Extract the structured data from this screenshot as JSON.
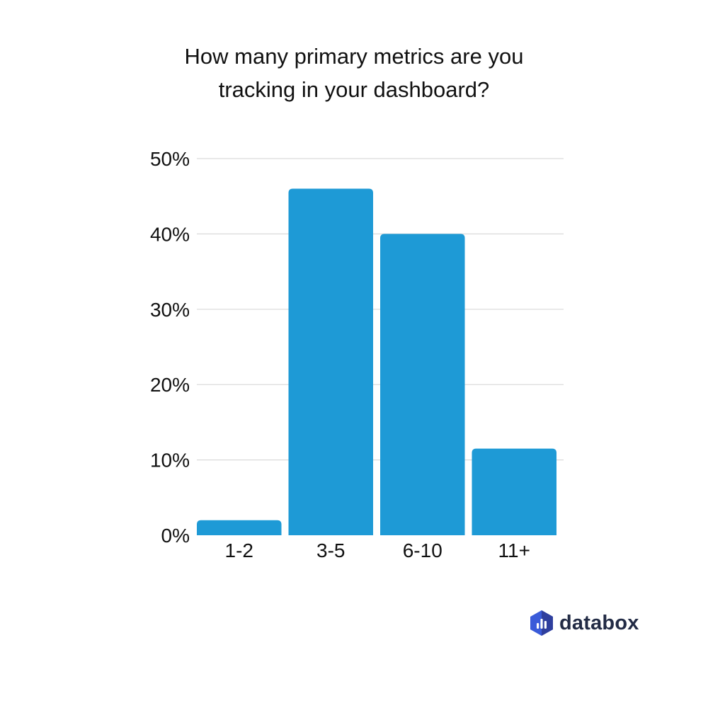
{
  "title": {
    "line1": "How many primary metrics are you",
    "line2": "tracking in your dashboard?"
  },
  "chart_data": {
    "type": "bar",
    "title": "How many primary metrics are you tracking in your dashboard?",
    "xlabel": "",
    "ylabel": "",
    "categories": [
      "1-2",
      "3-5",
      "6-10",
      "11+"
    ],
    "values": [
      2,
      46,
      40,
      11.5
    ],
    "ylim": [
      0,
      50
    ],
    "yticks": [
      0,
      10,
      20,
      30,
      40,
      50
    ],
    "ytick_labels": [
      "0%",
      "10%",
      "20%",
      "30%",
      "40%",
      "50%"
    ],
    "grid": true,
    "bar_color": "#1e9ad6",
    "grid_color": "#d9d9d9"
  },
  "logo": {
    "text": "databox",
    "icon": "databox-hexagon-icon",
    "colors": [
      "#3a5bd9",
      "#2f3f9e"
    ]
  }
}
